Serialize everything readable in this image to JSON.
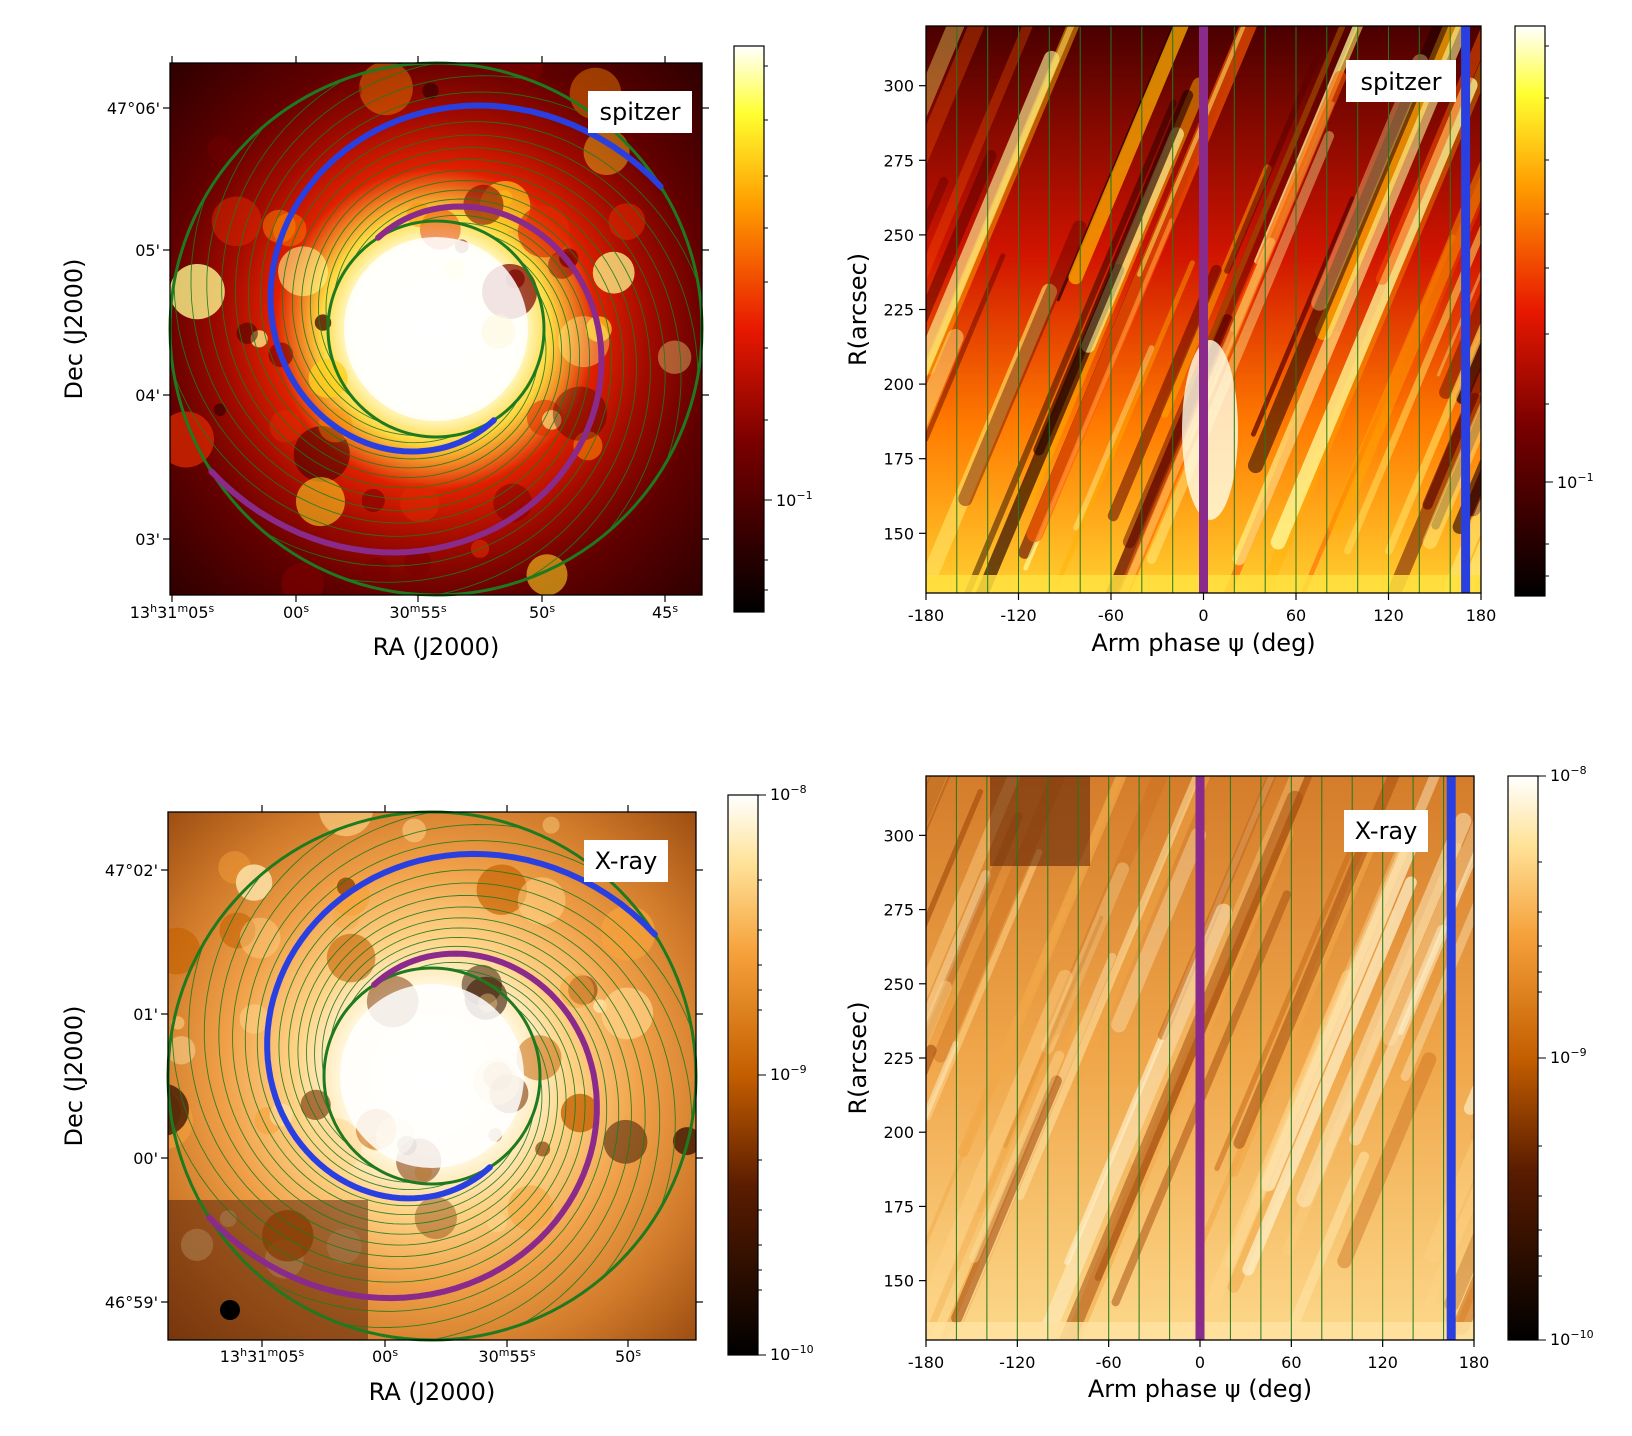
{
  "figure": {
    "colors": {
      "spiral_main": "#1e7a1e",
      "arm_blue": "#2a3fe0",
      "arm_purple": "#8a2a8a",
      "badge_bg": "#ffffff"
    }
  },
  "chart_data": [
    {
      "id": "spitzer-sky",
      "type": "heatmap",
      "colormap": "afmhot",
      "badge": "spitzer",
      "xlabel": "RA (J2000)",
      "ylabel": "Dec (J2000)",
      "x_ticks": [
        {
          "major": "13",
          "h": "h",
          "min": "31",
          "m": "m",
          "sec": "05",
          "s": "s"
        },
        {
          "sec": "00",
          "s": "s"
        },
        {
          "min": "30",
          "m": "m",
          "sec": "55",
          "s": "s"
        },
        {
          "sec": "50",
          "s": "s"
        },
        {
          "sec": "45",
          "s": "s"
        }
      ],
      "y_ticks": [
        "03'",
        "04'",
        "05'",
        "47°06'"
      ],
      "colorbar": {
        "scale": "log",
        "ticks": [
          {
            "base": "10",
            "exp": "−1"
          }
        ]
      },
      "overlays": {
        "spiral_arms": [
          "blue",
          "purple"
        ],
        "circles": 2,
        "grid_spirals": true
      }
    },
    {
      "id": "spitzer-phase",
      "type": "heatmap",
      "colormap": "afmhot",
      "badge": "spitzer",
      "xlabel": "Arm phase ψ (deg)",
      "ylabel": "R(arcsec)",
      "x_ticks": [
        "-180",
        "-120",
        "-60",
        "0",
        "60",
        "120",
        "180"
      ],
      "y_ticks": [
        "150",
        "175",
        "200",
        "225",
        "250",
        "275",
        "300"
      ],
      "xlim": [
        -180,
        180
      ],
      "ylim": [
        130,
        320
      ],
      "marker_lines": [
        {
          "x": 0,
          "color": "purple"
        },
        {
          "x": 170,
          "color": "blue"
        }
      ],
      "colorbar": {
        "scale": "log",
        "ticks": [
          {
            "base": "10",
            "exp": "−1"
          }
        ]
      }
    },
    {
      "id": "xray-sky",
      "type": "heatmap",
      "colormap": "afmhot",
      "badge": "X-ray",
      "xlabel": "RA (J2000)",
      "ylabel": "Dec (J2000)",
      "x_ticks": [
        {
          "major": "13",
          "h": "h",
          "min": "31",
          "m": "m",
          "sec": "05",
          "s": "s"
        },
        {
          "sec": "00",
          "s": "s"
        },
        {
          "min": "30",
          "m": "m",
          "sec": "55",
          "s": "s"
        },
        {
          "sec": "50",
          "s": "s"
        }
      ],
      "y_ticks": [
        "46°59'",
        "00'",
        "01'",
        "47°02'"
      ],
      "colorbar": {
        "scale": "log",
        "ticks": [
          {
            "base": "10",
            "exp": "−10"
          },
          {
            "base": "10",
            "exp": "−9"
          },
          {
            "base": "10",
            "exp": "−8"
          }
        ]
      },
      "overlays": {
        "spiral_arms": [
          "blue",
          "purple"
        ],
        "circles": 2,
        "grid_spirals": true
      }
    },
    {
      "id": "xray-phase",
      "type": "heatmap",
      "colormap": "afmhot",
      "badge": "X-ray",
      "xlabel": "Arm phase ψ (deg)",
      "ylabel": "R(arcsec)",
      "x_ticks": [
        "-180",
        "-120",
        "-60",
        "0",
        "60",
        "120",
        "180"
      ],
      "y_ticks": [
        "150",
        "175",
        "200",
        "225",
        "250",
        "275",
        "300"
      ],
      "xlim": [
        -180,
        180
      ],
      "ylim": [
        130,
        320
      ],
      "marker_lines": [
        {
          "x": 0,
          "color": "purple"
        },
        {
          "x": 165,
          "color": "blue"
        }
      ],
      "colorbar": {
        "scale": "log",
        "ticks": [
          {
            "base": "10",
            "exp": "−10"
          },
          {
            "base": "10",
            "exp": "−9"
          },
          {
            "base": "10",
            "exp": "−8"
          }
        ]
      }
    }
  ]
}
